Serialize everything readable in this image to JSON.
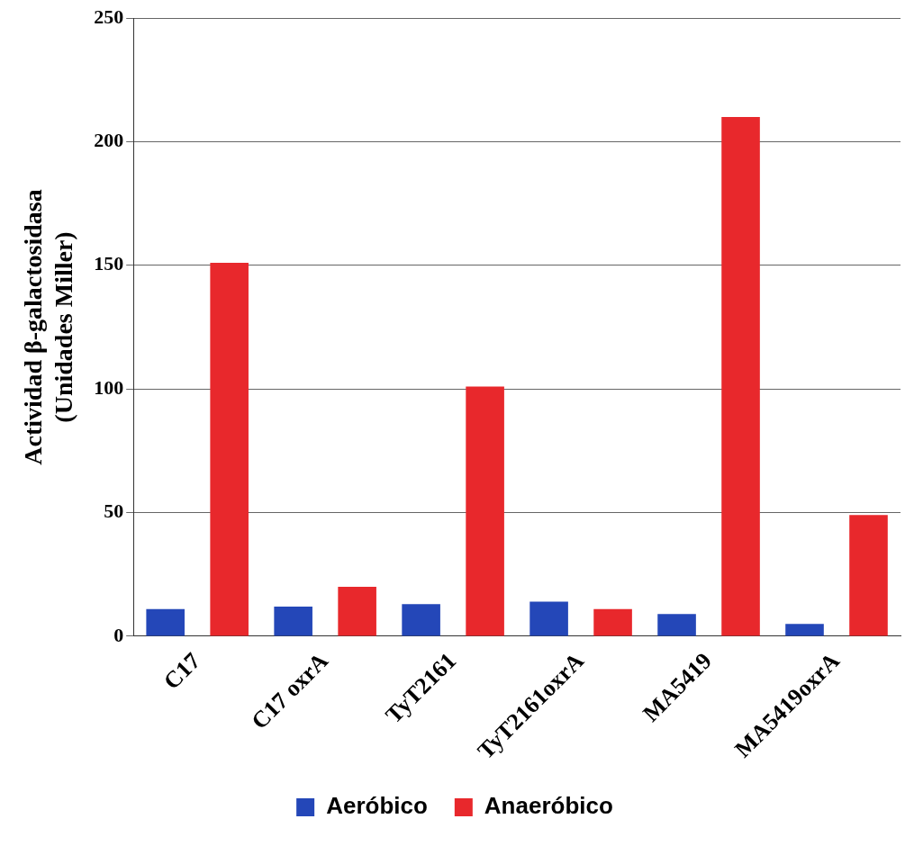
{
  "chart_data": {
    "type": "bar",
    "ylabel": "Actividad β-galactosidasa\n(Unidades Miller)",
    "categories": [
      "C17",
      "C17 oxrA",
      "TyT2161",
      "TyT2161oxrA",
      "MA5419",
      "MA5419oxrA"
    ],
    "series": [
      {
        "name": "Aeróbico",
        "color": "#2447b8",
        "values": [
          11,
          12,
          13,
          14,
          9,
          5
        ]
      },
      {
        "name": "Anaeróbico",
        "color": "#e8282c",
        "values": [
          151,
          20,
          101,
          11,
          210,
          49
        ]
      }
    ],
    "ylim": [
      0,
      250
    ],
    "yticks": [
      0,
      50,
      100,
      150,
      200,
      250
    ],
    "grid": "y",
    "legend": "bottom"
  }
}
